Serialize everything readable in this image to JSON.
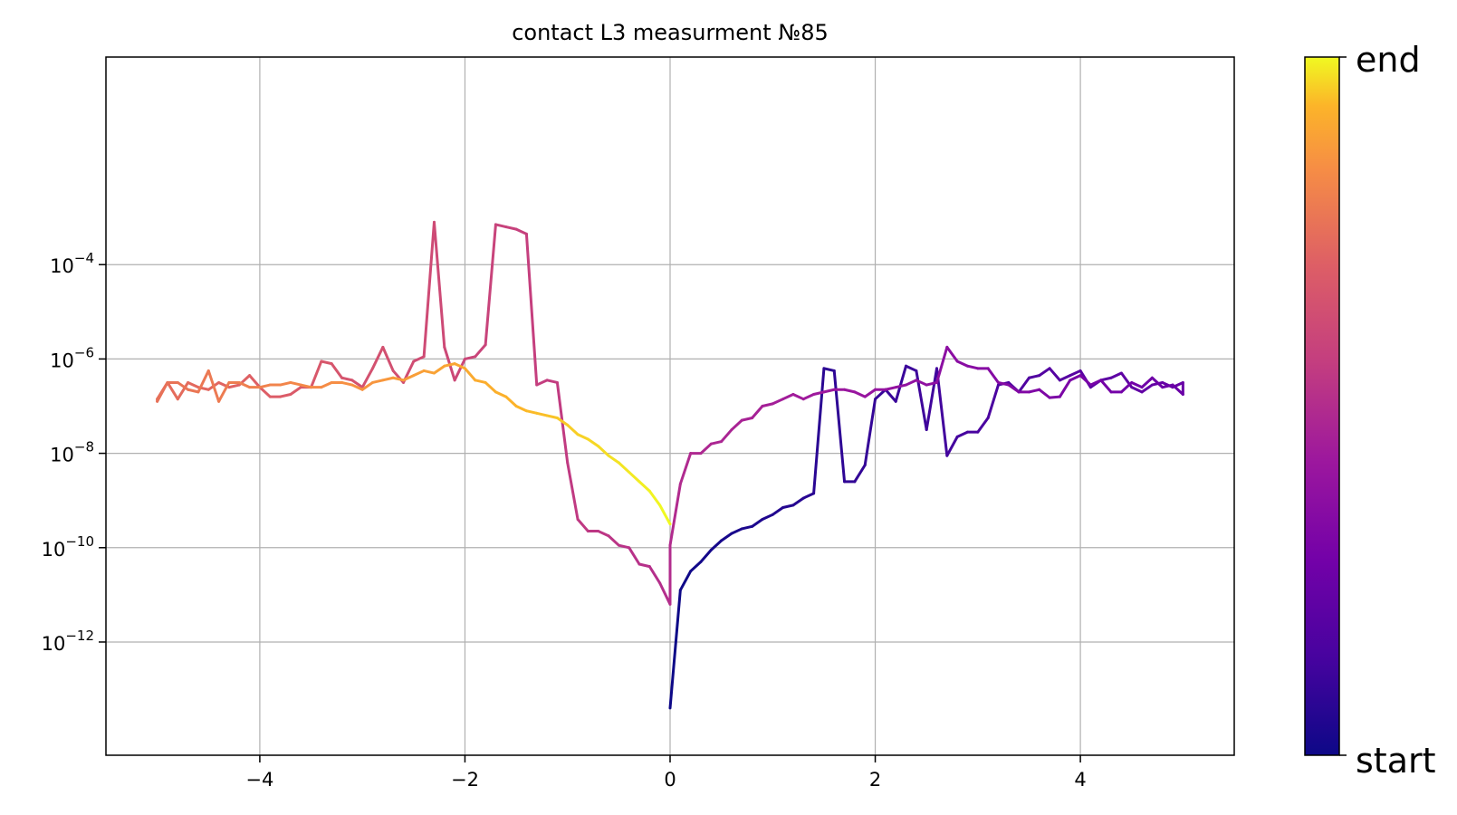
{
  "chart_data": {
    "type": "line",
    "title": "contact L3 measurment №85",
    "xlabel": "",
    "ylabel": "",
    "xlim": [
      -5.5,
      5.5
    ],
    "ylim_exponent": [
      -14.4,
      0.4
    ],
    "yscale": "log",
    "grid": true,
    "x_ticks": [
      -4,
      -2,
      0,
      2,
      4
    ],
    "x_tick_labels": [
      "−4",
      "−2",
      "0",
      "2",
      "4"
    ],
    "y_ticks_exponent": [
      -12,
      -10,
      -8,
      -6,
      -4
    ],
    "y_tick_base": "10",
    "y_tick_exponent_labels": [
      "−12",
      "−10",
      "−8",
      "−6",
      "−4"
    ],
    "colormap": "plasma",
    "colorbar": {
      "bottom_label": "start",
      "top_label": "end"
    },
    "sweep": {
      "x": [
        0,
        0.1,
        0.2,
        0.3,
        0.4,
        0.5,
        0.6,
        0.7,
        0.8,
        0.9,
        1.0,
        1.1,
        1.2,
        1.3,
        1.4,
        1.5,
        1.6,
        1.7,
        1.8,
        1.9,
        2.0,
        2.1,
        2.2,
        2.3,
        2.4,
        2.5,
        2.6,
        2.7,
        2.8,
        2.9,
        3.0,
        3.1,
        3.2,
        3.3,
        3.4,
        3.5,
        3.6,
        3.7,
        3.8,
        3.9,
        4.0,
        4.1,
        4.2,
        4.3,
        4.4,
        4.5,
        4.6,
        4.7,
        4.8,
        4.9,
        5.0,
        5.0,
        4.9,
        4.8,
        4.7,
        4.6,
        4.5,
        4.4,
        4.3,
        4.2,
        4.1,
        4.0,
        3.9,
        3.8,
        3.7,
        3.6,
        3.5,
        3.4,
        3.3,
        3.2,
        3.1,
        3.0,
        2.9,
        2.8,
        2.7,
        2.6,
        2.5,
        2.4,
        2.3,
        2.2,
        2.1,
        2.0,
        1.9,
        1.8,
        1.7,
        1.6,
        1.5,
        1.4,
        1.3,
        1.2,
        1.1,
        1.0,
        0.9,
        0.8,
        0.7,
        0.6,
        0.5,
        0.4,
        0.3,
        0.2,
        0.1,
        0.0,
        0.0,
        -0.1,
        -0.2,
        -0.3,
        -0.4,
        -0.5,
        -0.6,
        -0.7,
        -0.8,
        -0.9,
        -1.0,
        -1.1,
        -1.2,
        -1.3,
        -1.4,
        -1.5,
        -1.6,
        -1.7,
        -1.8,
        -1.9,
        -2.0,
        -2.1,
        -2.2,
        -2.3,
        -2.4,
        -2.5,
        -2.6,
        -2.7,
        -2.8,
        -2.9,
        -3.0,
        -3.1,
        -3.2,
        -3.3,
        -3.4,
        -3.5,
        -3.6,
        -3.7,
        -3.8,
        -3.9,
        -4.0,
        -4.1,
        -4.2,
        -4.3,
        -4.4,
        -4.5,
        -4.6,
        -4.7,
        -4.8,
        -4.9,
        -5.0,
        -5.0,
        -4.9,
        -4.8,
        -4.7,
        -4.6,
        -4.5,
        -4.4,
        -4.3,
        -4.2,
        -4.1,
        -4.0,
        -3.9,
        -3.8,
        -3.7,
        -3.6,
        -3.5,
        -3.4,
        -3.3,
        -3.2,
        -3.1,
        -3.0,
        -2.9,
        -2.8,
        -2.7,
        -2.6,
        -2.5,
        -2.4,
        -2.3,
        -2.2,
        -2.1,
        -2.0,
        -1.9,
        -1.8,
        -1.7,
        -1.6,
        -1.5,
        -1.4,
        -1.3,
        -1.2,
        -1.1,
        -1.0,
        -0.9,
        -0.8,
        -0.7,
        -0.6,
        -0.5,
        -0.4,
        -0.3,
        -0.2,
        -0.1,
        0.0
      ],
      "log10_y": [
        -13.4,
        -10.9,
        -10.5,
        -10.3,
        -10.05,
        -9.85,
        -9.7,
        -9.6,
        -9.55,
        -9.4,
        -9.3,
        -9.15,
        -9.1,
        -8.95,
        -8.85,
        -6.2,
        -6.25,
        -8.6,
        -8.6,
        -8.25,
        -6.85,
        -6.65,
        -6.9,
        -6.15,
        -6.25,
        -7.5,
        -6.2,
        -8.05,
        -7.65,
        -7.55,
        -7.55,
        -7.25,
        -6.55,
        -6.5,
        -6.7,
        -6.4,
        -6.35,
        -6.2,
        -6.45,
        -6.35,
        -6.25,
        -6.6,
        -6.45,
        -6.4,
        -6.3,
        -6.6,
        -6.7,
        -6.55,
        -6.5,
        -6.6,
        -6.5,
        -6.75,
        -6.55,
        -6.6,
        -6.4,
        -6.6,
        -6.5,
        -6.7,
        -6.7,
        -6.45,
        -6.55,
        -6.35,
        -6.45,
        -6.8,
        -6.82,
        -6.65,
        -6.7,
        -6.7,
        -6.55,
        -6.5,
        -6.2,
        -6.2,
        -6.15,
        -6.05,
        -5.75,
        -6.5,
        -6.55,
        -6.45,
        -6.55,
        -6.6,
        -6.65,
        -6.65,
        -6.8,
        -6.7,
        -6.65,
        -6.65,
        -6.7,
        -6.75,
        -6.85,
        -6.75,
        -6.85,
        -6.95,
        -7.0,
        -7.25,
        -7.3,
        -7.5,
        -7.75,
        -7.8,
        -8.0,
        -8.0,
        -8.65,
        -9.95,
        -11.2,
        -10.75,
        -10.4,
        -10.35,
        -10.0,
        -9.95,
        -9.75,
        -9.65,
        -9.65,
        -9.4,
        -8.2,
        -6.5,
        -6.45,
        -6.55,
        -3.35,
        -3.25,
        -3.2,
        -3.15,
        -5.7,
        -5.95,
        -6.0,
        -6.45,
        -5.75,
        -3.1,
        -5.95,
        -6.05,
        -6.5,
        -6.25,
        -5.75,
        -6.2,
        -6.6,
        -6.45,
        -6.4,
        -6.1,
        -6.05,
        -6.6,
        -6.6,
        -6.75,
        -6.8,
        -6.8,
        -6.6,
        -6.35,
        -6.55,
        -6.6,
        -6.5,
        -6.65,
        -6.6,
        -6.5,
        -6.85,
        -6.5,
        -6.85,
        -6.9,
        -6.5,
        -6.5,
        -6.65,
        -6.7,
        -6.25,
        -6.9,
        -6.5,
        -6.5,
        -6.6,
        -6.6,
        -6.55,
        -6.55,
        -6.5,
        -6.55,
        -6.6,
        -6.6,
        -6.5,
        -6.5,
        -6.55,
        -6.65,
        -6.5,
        -6.45,
        -6.4,
        -6.45,
        -6.35,
        -6.25,
        -6.3,
        -6.15,
        -6.1,
        -6.2,
        -6.45,
        -6.5,
        -6.7,
        -6.8,
        -7.0,
        -7.1,
        -7.15,
        -7.2,
        -7.25,
        -7.4,
        -7.6,
        -7.7,
        -7.85,
        -8.05,
        -8.2,
        -8.4,
        -8.6,
        -8.8,
        -9.1,
        -9.5,
        -10.0
      ]
    }
  }
}
